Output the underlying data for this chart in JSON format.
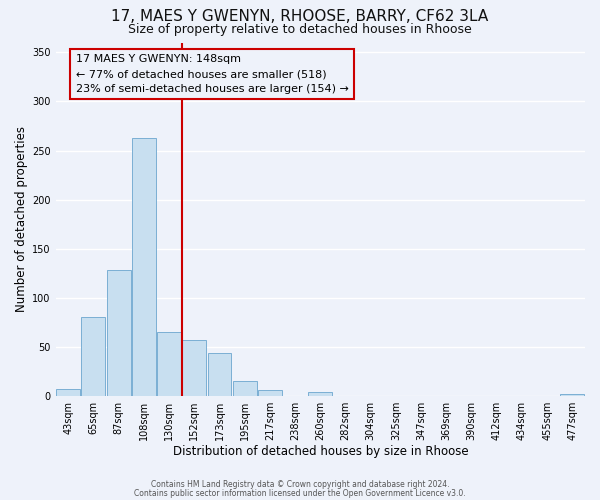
{
  "title": "17, MAES Y GWENYN, RHOOSE, BARRY, CF62 3LA",
  "subtitle": "Size of property relative to detached houses in Rhoose",
  "xlabel": "Distribution of detached houses by size in Rhoose",
  "ylabel": "Number of detached properties",
  "bar_labels": [
    "43sqm",
    "65sqm",
    "87sqm",
    "108sqm",
    "130sqm",
    "152sqm",
    "173sqm",
    "195sqm",
    "217sqm",
    "238sqm",
    "260sqm",
    "282sqm",
    "304sqm",
    "325sqm",
    "347sqm",
    "369sqm",
    "390sqm",
    "412sqm",
    "434sqm",
    "455sqm",
    "477sqm"
  ],
  "bar_heights": [
    7,
    81,
    128,
    263,
    65,
    57,
    44,
    15,
    6,
    0,
    4,
    0,
    0,
    0,
    0,
    0,
    0,
    0,
    0,
    0,
    2
  ],
  "bar_color": "#c8dff0",
  "bar_edgecolor": "#7bafd4",
  "vline_x": 4.5,
  "vline_color": "#cc0000",
  "annotation_title": "17 MAES Y GWENYN: 148sqm",
  "annotation_line1": "← 77% of detached houses are smaller (518)",
  "annotation_line2": "23% of semi-detached houses are larger (154) →",
  "annotation_box_edgecolor": "#cc0000",
  "ylim": [
    0,
    360
  ],
  "yticks": [
    0,
    50,
    100,
    150,
    200,
    250,
    300,
    350
  ],
  "footnote1": "Contains HM Land Registry data © Crown copyright and database right 2024.",
  "footnote2": "Contains public sector information licensed under the Open Government Licence v3.0.",
  "bg_color": "#eef2fa",
  "grid_color": "#ffffff",
  "title_fontsize": 11,
  "subtitle_fontsize": 9,
  "axis_fontsize": 8.5,
  "tick_fontsize": 7
}
